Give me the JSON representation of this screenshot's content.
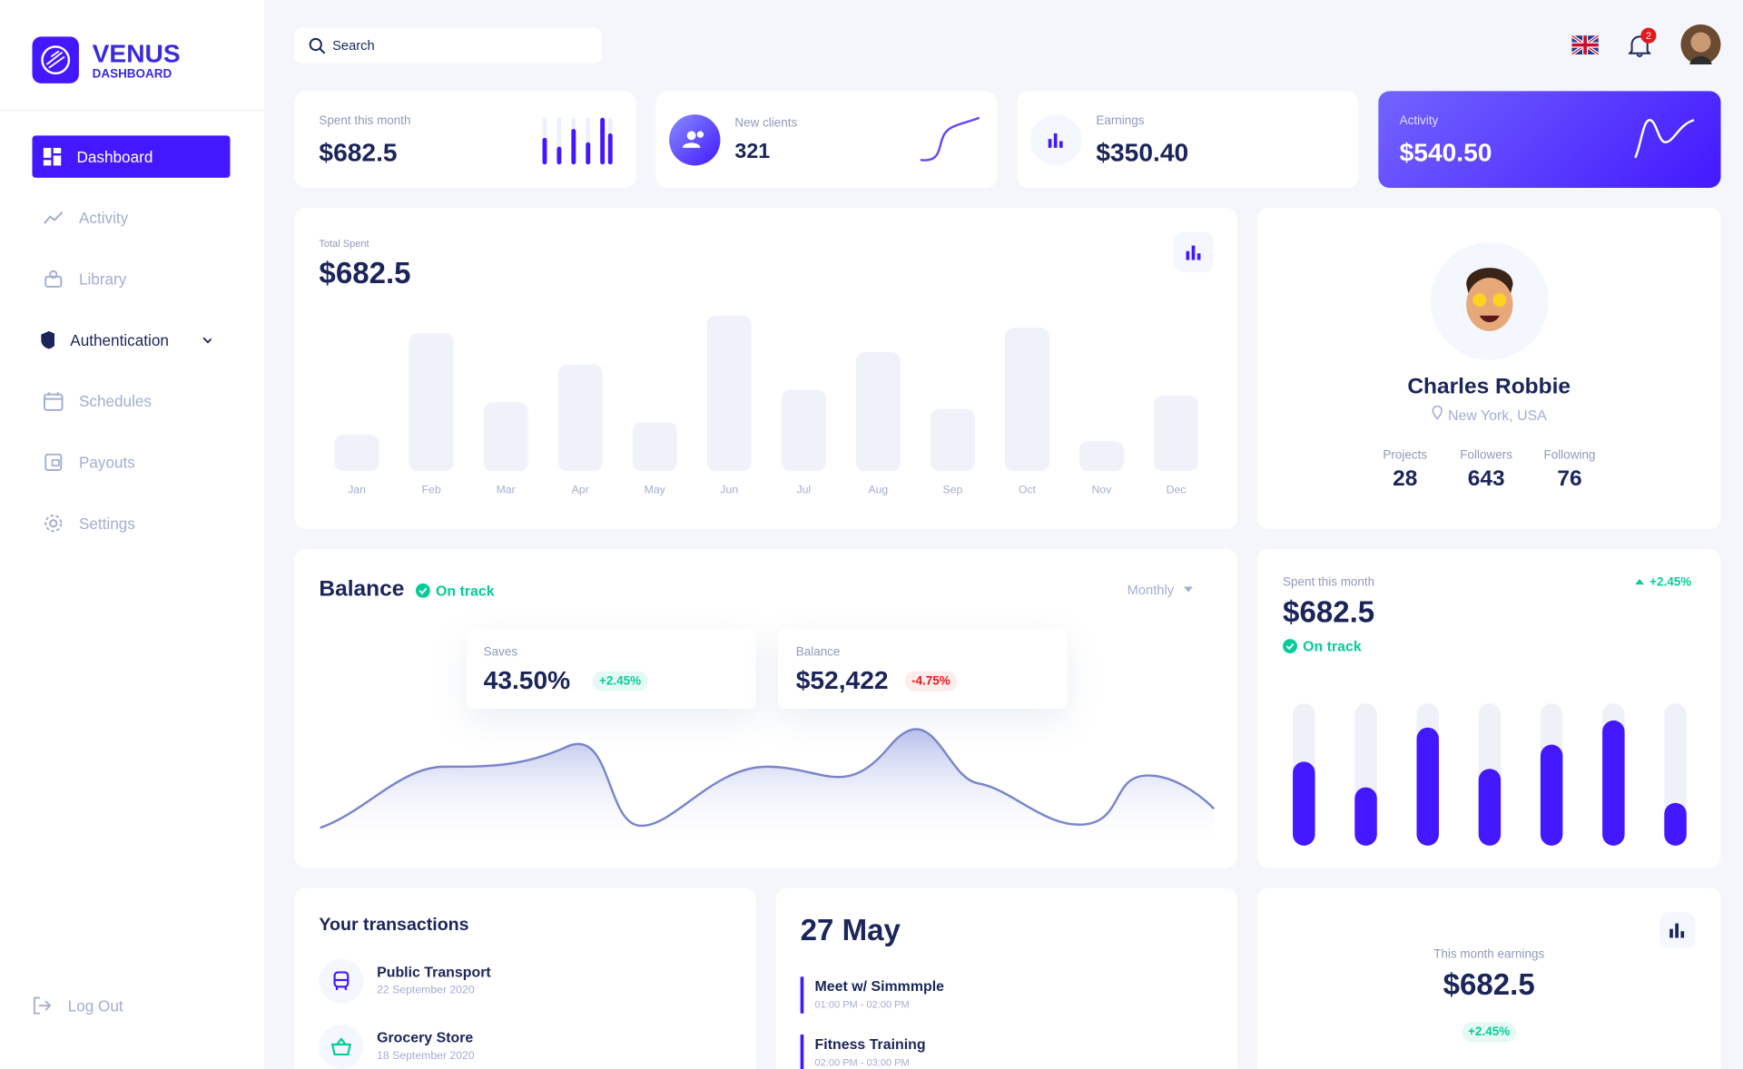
{
  "sidebar": {
    "brand": "VENUS",
    "brand_sub": "DASHBOARD",
    "nav": [
      "Dashboard",
      "Activity",
      "Library",
      "Authentication",
      "Schedules",
      "Payouts",
      "Settings"
    ],
    "logout": "Log Out"
  },
  "topbar": {
    "search_placeholder": "Search",
    "notifications": 2
  },
  "stats": [
    {
      "label": "Spent this month",
      "value": "$682.5"
    },
    {
      "label": "New clients",
      "value": "321"
    },
    {
      "label": "Earnings",
      "value": "$350.40"
    },
    {
      "label": "Activity",
      "value": "$540.50"
    }
  ],
  "total_spent": {
    "label": "Total Spent",
    "value": "$682.5",
    "chart": {
      "type": "bar",
      "categories": [
        "Jan",
        "Feb",
        "Mar",
        "Apr",
        "May",
        "Jun",
        "Jul",
        "Aug",
        "Sep",
        "Oct",
        "Nov",
        "Dec"
      ],
      "values": [
        33,
        124,
        62,
        96,
        44,
        140,
        73,
        107,
        56,
        129,
        27,
        68
      ]
    }
  },
  "profile": {
    "name": "Charles Robbie",
    "location": "New York, USA",
    "stats": [
      {
        "label": "Projects",
        "value": 28
      },
      {
        "label": "Followers",
        "value": 643
      },
      {
        "label": "Following",
        "value": 76
      }
    ]
  },
  "balance": {
    "title": "Balance",
    "status": "On track",
    "period": "Monthly",
    "cards": [
      {
        "label": "Saves",
        "value": "43.50%",
        "change": "+2.45%"
      },
      {
        "label": "Balance",
        "value": "$52,422",
        "change": "-4.75%"
      }
    ]
  },
  "spent_card": {
    "label": "Spent this month",
    "value": "$682.5",
    "change": "+2.45%",
    "status": "On track",
    "chart": {
      "type": "bar",
      "values": [
        59,
        41,
        83,
        54,
        71,
        88,
        30
      ]
    }
  },
  "transactions": {
    "title": "Your transactions",
    "items": [
      {
        "name": "Public Transport",
        "date": "22 September 2020"
      },
      {
        "name": "Grocery Store",
        "date": "18 September 2020"
      }
    ]
  },
  "schedule": {
    "date": "27 May",
    "events": [
      {
        "title": "Meet w/ Simmmple",
        "time": "01:00 PM - 02:00 PM"
      },
      {
        "title": "Fitness Training",
        "time": "02:00 PM - 03:00 PM"
      }
    ]
  },
  "earnings": {
    "label": "This month earnings",
    "value": "$682.5",
    "change": "+2.45%"
  }
}
